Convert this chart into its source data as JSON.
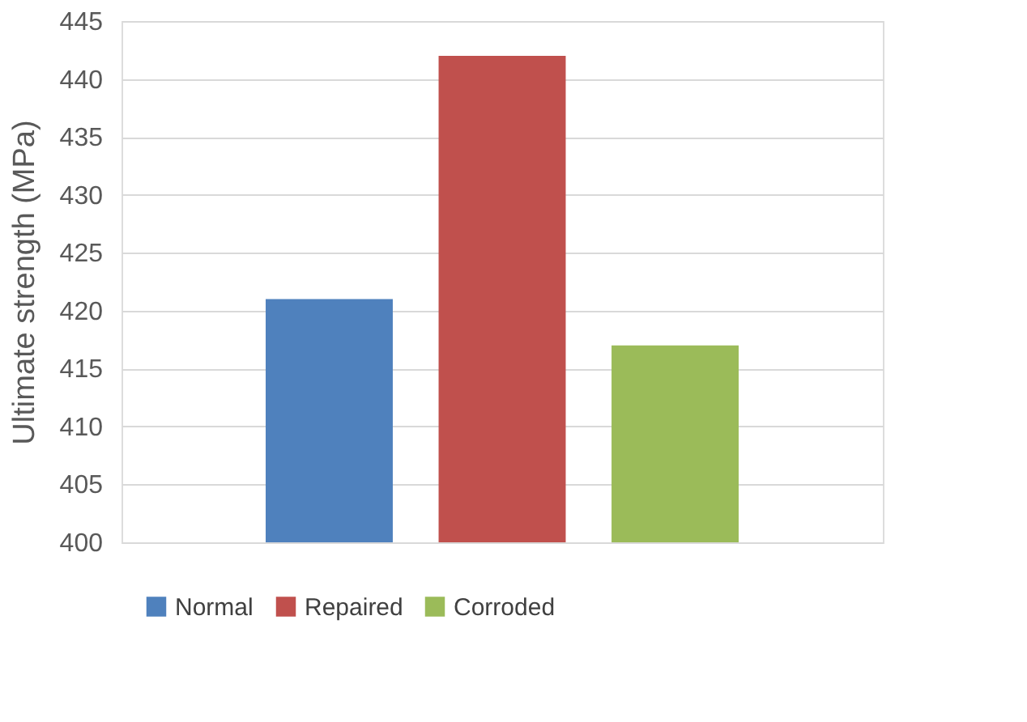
{
  "chart_data": {
    "type": "bar",
    "ylabel": "Ultimate strength (MPa)",
    "categories": [
      null
    ],
    "series": [
      {
        "name": "Normal",
        "color": "#4f81bd",
        "values": [
          421
        ]
      },
      {
        "name": "Repaired",
        "color": "#c0504d",
        "values": [
          442
        ]
      },
      {
        "name": "Corroded",
        "color": "#9bbb59",
        "values": [
          417
        ]
      }
    ],
    "ylim": [
      400,
      445
    ],
    "yticks": [
      400,
      405,
      410,
      415,
      420,
      425,
      430,
      435,
      440,
      445
    ],
    "grid": "y",
    "legend": "bottom",
    "tick_labels": "y"
  }
}
